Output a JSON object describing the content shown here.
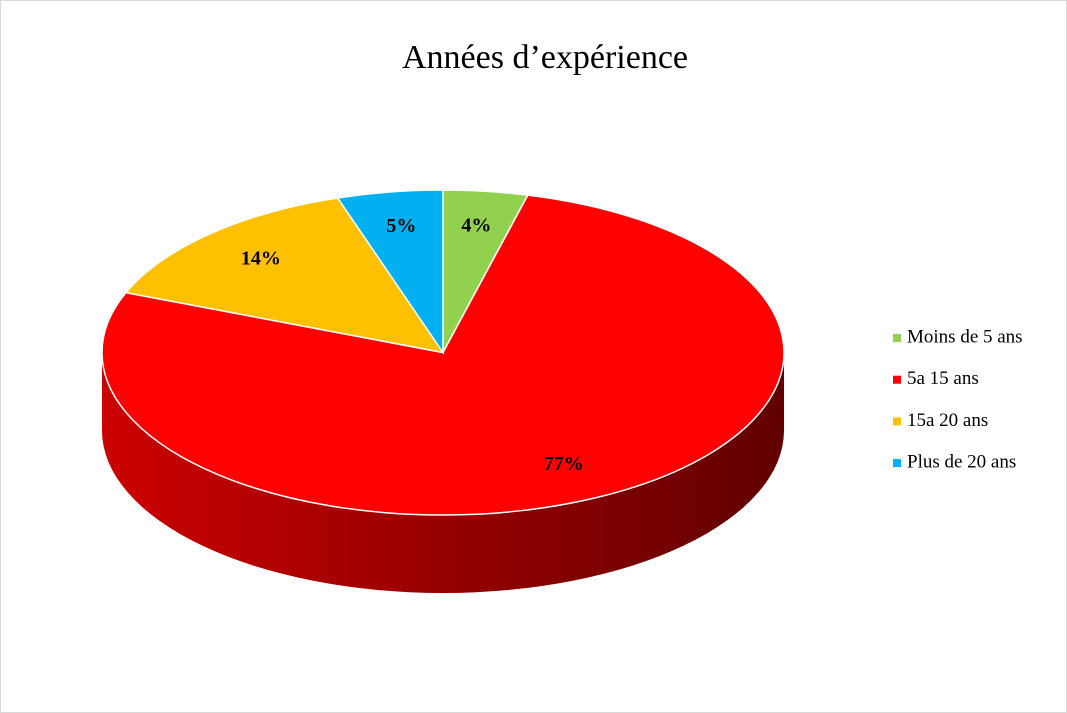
{
  "chart_data": {
    "type": "pie",
    "title": "Années d’expérience",
    "categories": [
      "Moins de 5 ans",
      "5a 15 ans",
      "15a 20 ans",
      "Plus de 20 ans"
    ],
    "values": [
      4,
      77,
      14,
      5
    ],
    "value_labels": [
      "4%",
      "77%",
      "14%",
      "5%"
    ],
    "colors": [
      "#92d050",
      "#ff0000",
      "#ffc000",
      "#00b0f0"
    ],
    "legend": "right"
  }
}
